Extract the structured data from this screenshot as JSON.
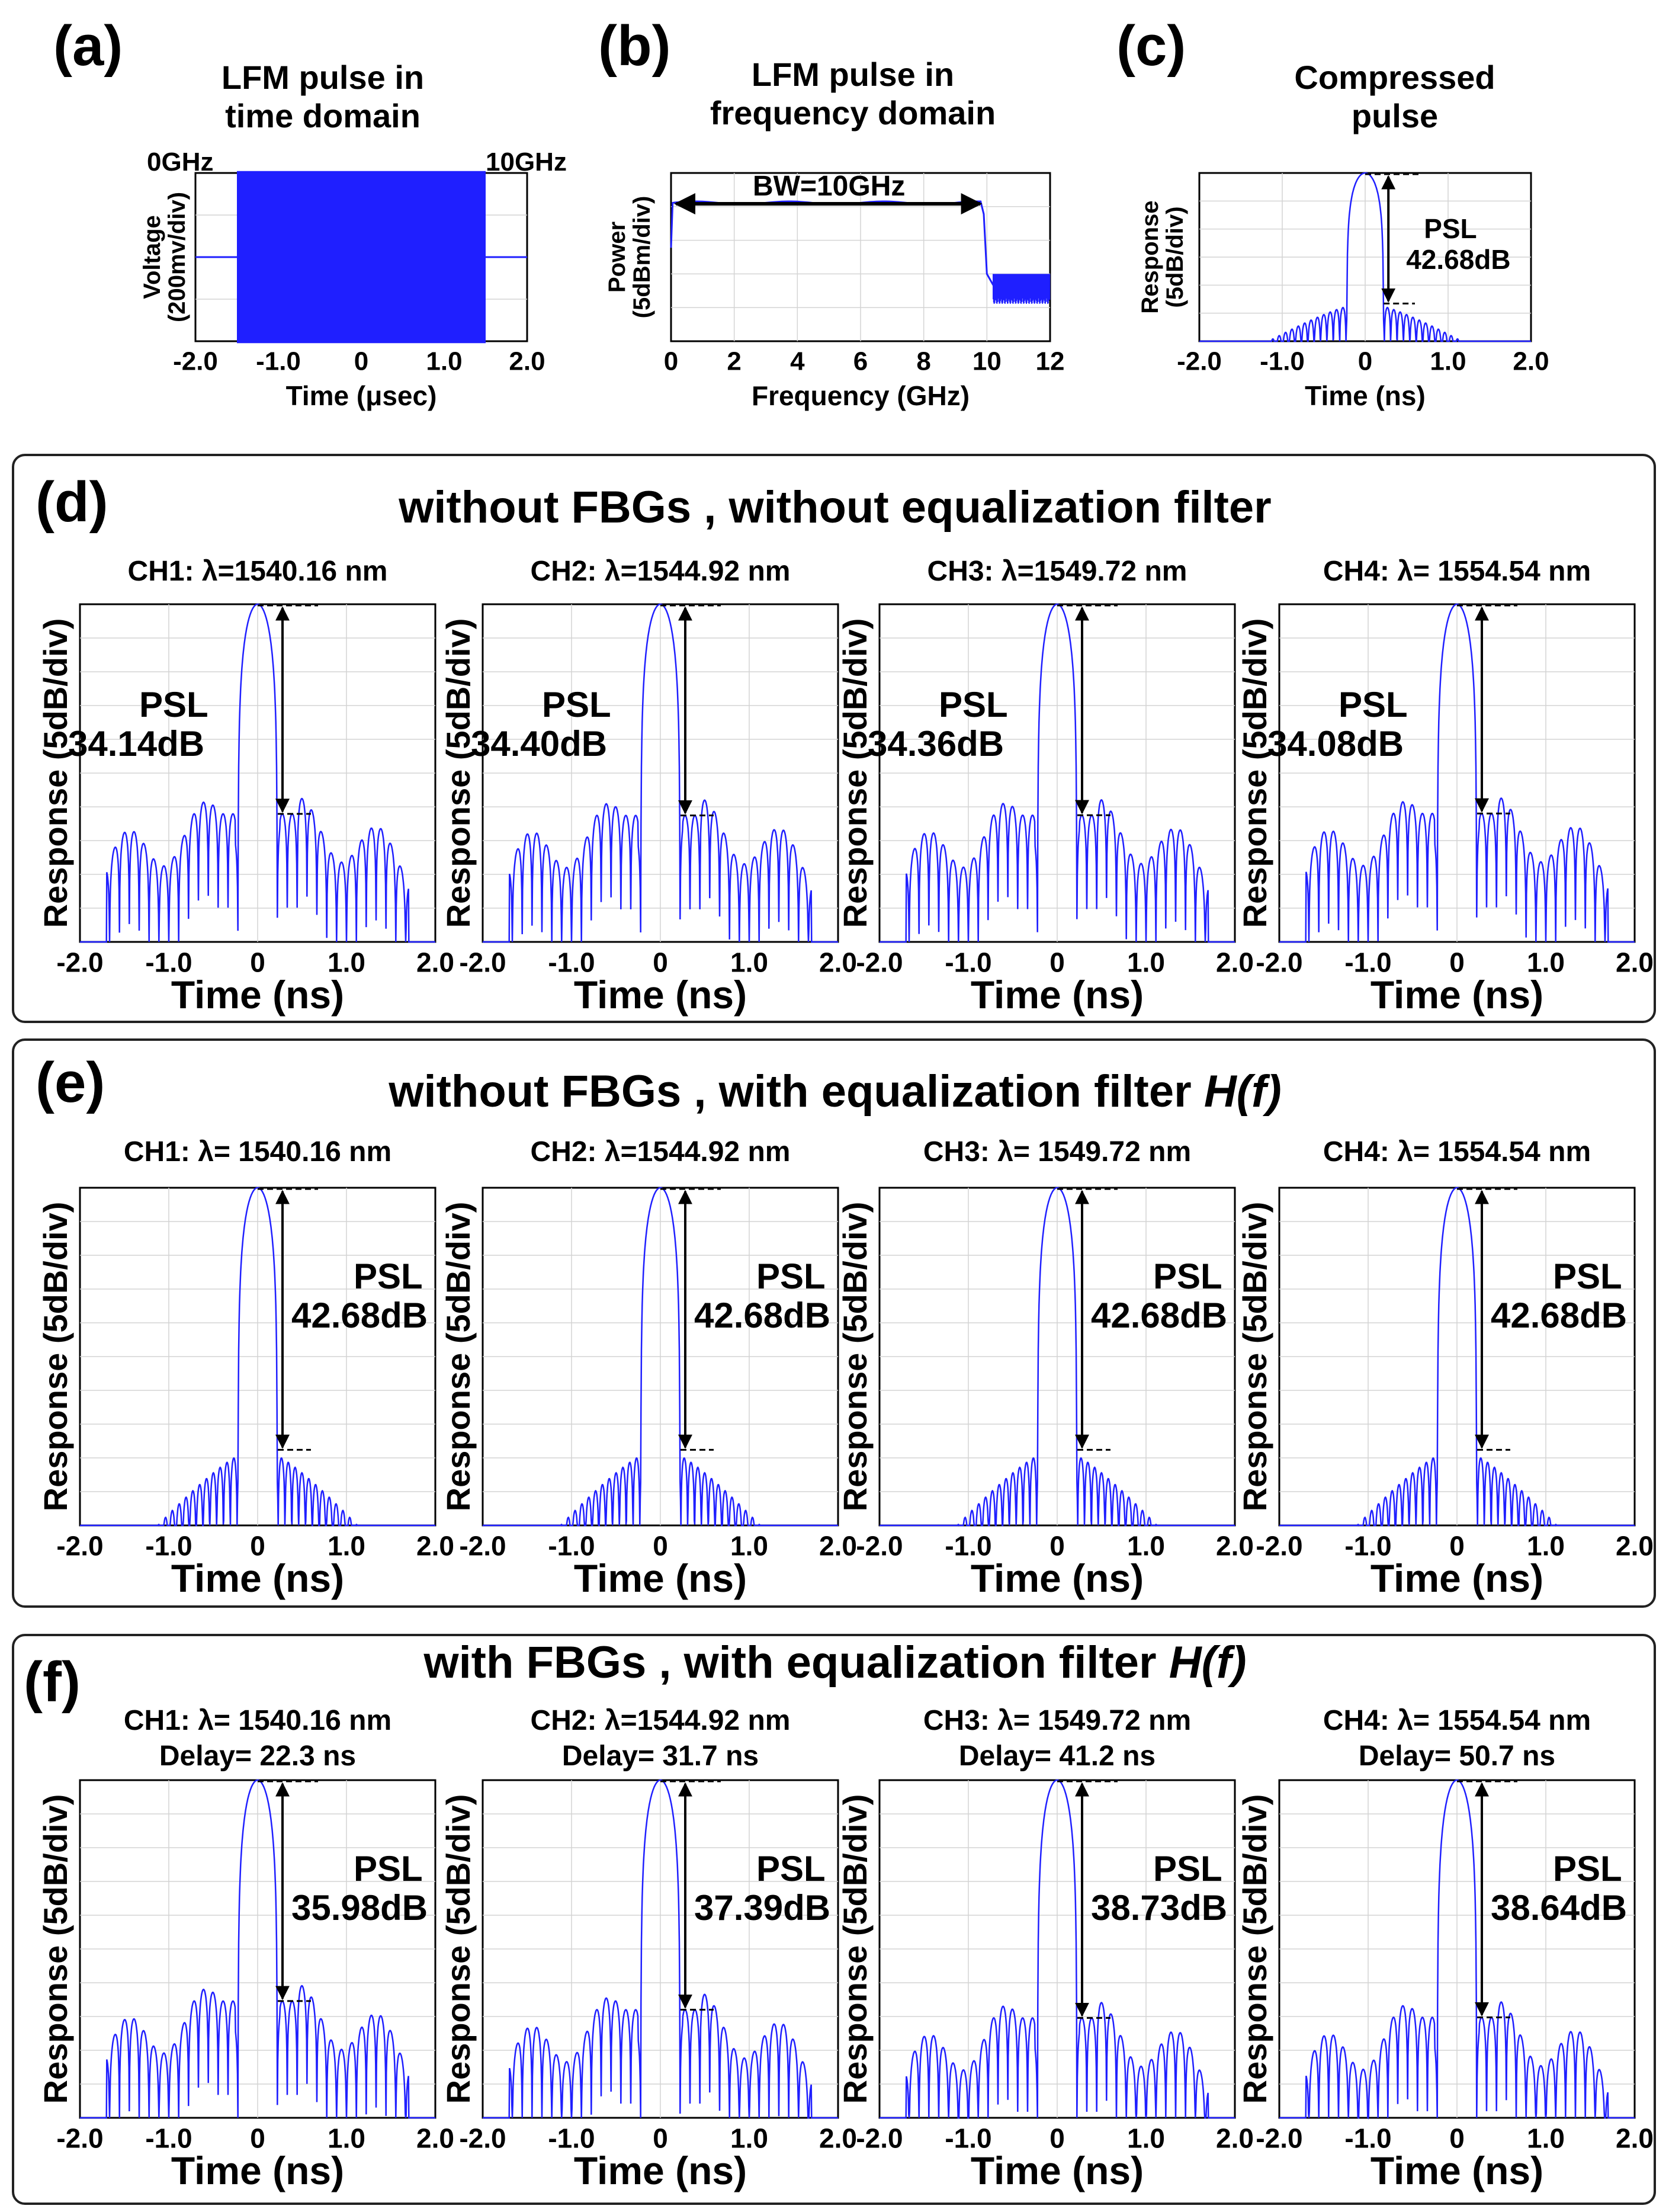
{
  "figure": {
    "panels": {
      "a": {
        "letter": "(a)",
        "title": [
          "LFM pulse in",
          "time domain"
        ]
      },
      "b": {
        "letter": "(b)",
        "title": [
          "LFM pulse in",
          "frequency domain"
        ]
      },
      "c": {
        "letter": "(c)",
        "title": [
          "Compressed",
          "pulse"
        ]
      },
      "d": {
        "letter": "(d)",
        "heading": "without FBGs , without equalization filter"
      },
      "e": {
        "letter": "(e)",
        "heading": "without FBGs ,  with equalization filter ",
        "heading_italic": "H(f)"
      },
      "f": {
        "letter": "(f)",
        "heading": "with FBGs ,  with equalization filter ",
        "heading_italic": "H(f)"
      }
    }
  },
  "colors": {
    "trace": "#1f1fff",
    "grid": "#d4d4d4",
    "frame": "#000000"
  },
  "chart_data": [
    {
      "id": "a",
      "type": "line",
      "title": "LFM pulse in time domain",
      "xlabel": "Time (μsec)",
      "ylabel": [
        "Voltage",
        "(200mv/div)"
      ],
      "xlim": [
        -2.0,
        2.0
      ],
      "xticks": [
        "-2.0",
        "-1.0",
        "0",
        "1.0",
        "2.0"
      ],
      "annotations": [
        "0GHz",
        "10GHz"
      ],
      "series": [
        {
          "name": "LFM pulse",
          "x_start": -1.5,
          "x_end": 1.5,
          "amplitude_divs": 2.2
        }
      ]
    },
    {
      "id": "b",
      "type": "line",
      "title": "LFM pulse in frequency domain",
      "xlabel": "Frequency (GHz)",
      "ylabel": [
        "Power",
        "(5dBm/div)"
      ],
      "xlim": [
        0,
        12
      ],
      "xticks": [
        "0",
        "2",
        "4",
        "6",
        "8",
        "10",
        "12"
      ],
      "annotations": [
        "BW=10GHz"
      ],
      "series": [
        {
          "name": "spectrum",
          "passband": [
            0,
            10
          ],
          "passband_level_dBm": -3,
          "stopband_level_dBm": -25,
          "ylim_dBm": [
            -40,
            5
          ]
        }
      ]
    },
    {
      "id": "c",
      "type": "line",
      "title": "Compressed pulse",
      "xlabel": "Time (ns)",
      "ylabel": [
        "Response",
        "(5dB/div)"
      ],
      "xlim": [
        -2.0,
        2.0
      ],
      "xticks": [
        "-2.0",
        "-1.0",
        "0",
        "1.0",
        "2.0"
      ],
      "psl": {
        "label": "PSL",
        "value": "42.68dB",
        "dB": 42.68
      },
      "series": [
        {
          "name": "compressed",
          "mainlobe_halfwidth_ns": 0.22,
          "sidelobe_extent_ns": 1.35,
          "profile": "tapered"
        }
      ]
    },
    {
      "id": "d1",
      "group": "d",
      "type": "line",
      "channel": "CH1: λ=1540.16 nm",
      "xlabel": "Time (ns)",
      "ylabel": "Response (5dB/div)",
      "xlim": [
        -2.0,
        2.0
      ],
      "xticks": [
        "-2.0",
        "-1.0",
        "0",
        "1.0",
        "2.0"
      ],
      "psl": {
        "label": "PSL",
        "value": "34.14dB",
        "dB": 34.14
      },
      "series": [
        {
          "profile": "ragged",
          "sidelobe_extent_ns": 1.7
        }
      ]
    },
    {
      "id": "d2",
      "group": "d",
      "type": "line",
      "channel": "CH2: λ=1544.92 nm",
      "xlabel": "Time (ns)",
      "ylabel": "Response (5dB/div)",
      "xlim": [
        -2.0,
        2.0
      ],
      "xticks": [
        "-2.0",
        "-1.0",
        "0",
        "1.0",
        "2.0"
      ],
      "psl": {
        "label": "PSL",
        "value": "34.40dB",
        "dB": 34.4
      },
      "series": [
        {
          "profile": "ragged",
          "sidelobe_extent_ns": 1.7
        }
      ]
    },
    {
      "id": "d3",
      "group": "d",
      "type": "line",
      "channel": "CH3: λ=1549.72 nm",
      "xlabel": "Time (ns)",
      "ylabel": "Response (5dB/div)",
      "xlim": [
        -2.0,
        2.0
      ],
      "xticks": [
        "-2.0",
        "-1.0",
        "0",
        "1.0",
        "2.0"
      ],
      "psl": {
        "label": "PSL",
        "value": "34.36dB",
        "dB": 34.36
      },
      "series": [
        {
          "profile": "ragged",
          "sidelobe_extent_ns": 1.7
        }
      ]
    },
    {
      "id": "d4",
      "group": "d",
      "type": "line",
      "channel": "CH4: λ= 1554.54 nm",
      "xlabel": "Time (ns)",
      "ylabel": "Response (5dB/div)",
      "xlim": [
        -2.0,
        2.0
      ],
      "xticks": [
        "-2.0",
        "-1.0",
        "0",
        "1.0",
        "2.0"
      ],
      "psl": {
        "label": "PSL",
        "value": "34.08dB",
        "dB": 34.08
      },
      "series": [
        {
          "profile": "ragged",
          "sidelobe_extent_ns": 1.7
        }
      ]
    },
    {
      "id": "e1",
      "group": "e",
      "type": "line",
      "channel": "CH1: λ= 1540.16 nm",
      "xlabel": "Time (ns)",
      "ylabel": "Response (5dB/div)",
      "xlim": [
        -2.0,
        2.0
      ],
      "xticks": [
        "-2.0",
        "-1.0",
        "0",
        "1.0",
        "2.0"
      ],
      "psl": {
        "label": "PSL",
        "value": "42.68dB",
        "dB": 42.68
      },
      "series": [
        {
          "profile": "tapered",
          "sidelobe_extent_ns": 1.3
        }
      ]
    },
    {
      "id": "e2",
      "group": "e",
      "type": "line",
      "channel": "CH2: λ=1544.92 nm",
      "xlabel": "Time (ns)",
      "ylabel": "Response (5dB/div)",
      "xlim": [
        -2.0,
        2.0
      ],
      "xticks": [
        "-2.0",
        "-1.0",
        "0",
        "1.0",
        "2.0"
      ],
      "psl": {
        "label": "PSL",
        "value": "42.68dB",
        "dB": 42.68
      },
      "series": [
        {
          "profile": "tapered",
          "sidelobe_extent_ns": 1.3
        }
      ]
    },
    {
      "id": "e3",
      "group": "e",
      "type": "line",
      "channel": "CH3: λ= 1549.72 nm",
      "xlabel": "Time (ns)",
      "ylabel": "Response (5dB/div)",
      "xlim": [
        -2.0,
        2.0
      ],
      "xticks": [
        "-2.0",
        "-1.0",
        "0",
        "1.0",
        "2.0"
      ],
      "psl": {
        "label": "PSL",
        "value": "42.68dB",
        "dB": 42.68
      },
      "series": [
        {
          "profile": "tapered",
          "sidelobe_extent_ns": 1.3
        }
      ]
    },
    {
      "id": "e4",
      "group": "e",
      "type": "line",
      "channel": "CH4: λ= 1554.54 nm",
      "xlabel": "Time (ns)",
      "ylabel": "Response (5dB/div)",
      "xlim": [
        -2.0,
        2.0
      ],
      "xticks": [
        "-2.0",
        "-1.0",
        "0",
        "1.0",
        "2.0"
      ],
      "psl": {
        "label": "PSL",
        "value": "42.68dB",
        "dB": 42.68
      },
      "series": [
        {
          "profile": "tapered",
          "sidelobe_extent_ns": 1.3
        }
      ]
    },
    {
      "id": "f1",
      "group": "f",
      "type": "line",
      "channel": "CH1: λ= 1540.16 nm",
      "delay": "Delay= 22.3 ns",
      "xlabel": "Time (ns)",
      "ylabel": "Response (5dB/div)",
      "xlim": [
        -2.0,
        2.0
      ],
      "xticks": [
        "-2.0",
        "-1.0",
        "0",
        "1.0",
        "2.0"
      ],
      "psl": {
        "label": "PSL",
        "value": "35.98dB",
        "dB": 35.98
      },
      "series": [
        {
          "profile": "ragged",
          "sidelobe_extent_ns": 1.7
        }
      ]
    },
    {
      "id": "f2",
      "group": "f",
      "type": "line",
      "channel": "CH2: λ=1544.92 nm",
      "delay": "Delay= 31.7 ns",
      "xlabel": "Time (ns)",
      "ylabel": "Response (5dB/div)",
      "xlim": [
        -2.0,
        2.0
      ],
      "xticks": [
        "-2.0",
        "-1.0",
        "0",
        "1.0",
        "2.0"
      ],
      "psl": {
        "label": "PSL",
        "value": "37.39dB",
        "dB": 37.39
      },
      "series": [
        {
          "profile": "ragged",
          "sidelobe_extent_ns": 1.7
        }
      ]
    },
    {
      "id": "f3",
      "group": "f",
      "type": "line",
      "channel": "CH3: λ= 1549.72 nm",
      "delay": "Delay= 41.2 ns",
      "xlabel": "Time (ns)",
      "ylabel": "Response (5dB/div)",
      "xlim": [
        -2.0,
        2.0
      ],
      "xticks": [
        "-2.0",
        "-1.0",
        "0",
        "1.0",
        "2.0"
      ],
      "psl": {
        "label": "PSL",
        "value": "38.73dB",
        "dB": 38.73
      },
      "series": [
        {
          "profile": "ragged",
          "sidelobe_extent_ns": 1.7
        }
      ]
    },
    {
      "id": "f4",
      "group": "f",
      "type": "line",
      "channel": "CH4: λ= 1554.54 nm",
      "delay": "Delay= 50.7 ns",
      "xlabel": "Time (ns)",
      "ylabel": "Response (5dB/div)",
      "xlim": [
        -2.0,
        2.0
      ],
      "xticks": [
        "-2.0",
        "-1.0",
        "0",
        "1.0",
        "2.0"
      ],
      "psl": {
        "label": "PSL",
        "value": "38.64dB",
        "dB": 38.64
      },
      "series": [
        {
          "profile": "ragged",
          "sidelobe_extent_ns": 1.7
        }
      ]
    }
  ]
}
